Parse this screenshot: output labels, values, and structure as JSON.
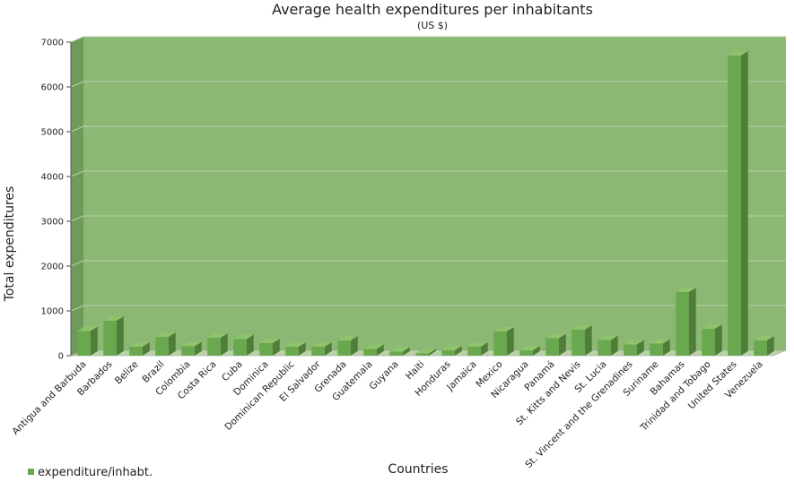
{
  "chart_data": {
    "type": "bar",
    "title": "Average health expenditures per inhabitants",
    "subtitle": "(US $)",
    "xlabel": "Countries",
    "ylabel": "Total expenditures",
    "ylim": [
      0,
      7000
    ],
    "yticks": [
      0,
      1000,
      2000,
      3000,
      4000,
      5000,
      6000,
      7000
    ],
    "grid": true,
    "legend_position": "bottom-left",
    "colors": {
      "plot_bg": "#8bb873",
      "wall_side": "#6f9a5c",
      "floor": "#b9d3a6",
      "bar_front": "#6aa84f",
      "bar_side": "#4f7d3a",
      "bar_top": "#8fc46c",
      "grid": "#b9cfa9"
    },
    "categories": [
      "Antigua and Barbuda",
      "Barbados",
      "Belize",
      "Brazil",
      "Colombia",
      "Costa Rica",
      "Cuba",
      "Dominica",
      "Dominican Republic",
      "El Salvador",
      "Grenada",
      "Guatemala",
      "Guyana",
      "Haiti",
      "Honduras",
      "Jamaica",
      "Mexico",
      "Nicaragua",
      "Panamá",
      "St. Kitts and Nevis",
      "St. Lucia",
      "St. Vincent and the Grenadines",
      "Suriname",
      "Bahamas",
      "Trinidad and Tobago",
      "United States",
      "Venezuela"
    ],
    "series": [
      {
        "name": "expenditure/inhabt.",
        "values": [
          550,
          780,
          200,
          420,
          210,
          400,
          370,
          280,
          200,
          200,
          340,
          150,
          90,
          50,
          120,
          200,
          540,
          120,
          390,
          580,
          350,
          250,
          270,
          1420,
          600,
          6700,
          340
        ]
      }
    ]
  }
}
